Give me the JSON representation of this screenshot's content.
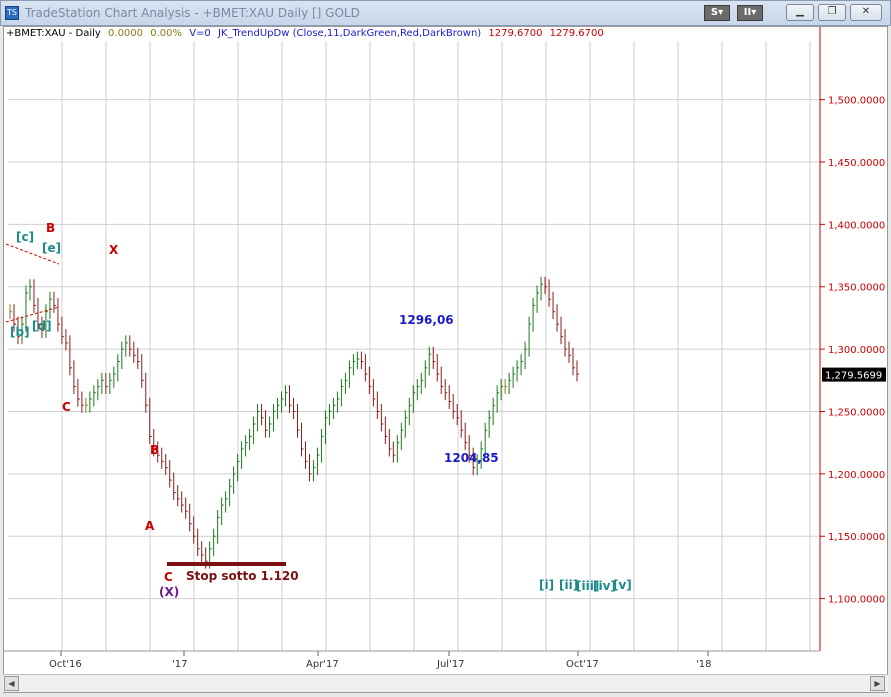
{
  "window": {
    "title": "TradeStation Chart Analysis - +BMET:XAU Daily [] GOLD",
    "buttons": {
      "s_label": "S",
      "chart_label": "II"
    }
  },
  "chart_header": {
    "symbol": "+BMET:XAU - Daily",
    "change": "0.0000",
    "change_pct": "0.00%",
    "volume": "V=0",
    "indicator": "JK_TrendUpDw (Close,11,DarkGreen,Red,DarkBrown)",
    "value1": "1279.6700",
    "value2": "1279.6700"
  },
  "colors": {
    "up": "#1a7a1a",
    "down": "#8b1a1a",
    "neutral": "#8a7a1a",
    "axis": "#cc0000",
    "grid": "#cfcfcf",
    "blue_label": "#1a1acc",
    "teal_label": "#1a8a8a",
    "purple_label": "#6a1a8a",
    "red_label": "#cc0000"
  },
  "chart_data": {
    "type": "bar",
    "y_ticks": [
      "1,500.0000",
      "1,450.0000",
      "1,400.0000",
      "1,350.0000",
      "1,300.0000",
      "1,250.0000",
      "1,200.0000",
      "1,150.0000",
      "1,100.0000"
    ],
    "y_tick_values": [
      1500,
      1450,
      1400,
      1350,
      1300,
      1250,
      1200,
      1150,
      1100
    ],
    "ylim": [
      1058,
      1547
    ],
    "x_ticks": [
      "Oct'16",
      "'17",
      "Apr'17",
      "Jul'17",
      "Oct'17",
      "'18"
    ],
    "last_price": "1,279.5699",
    "last_price_value": 1279.5699,
    "series": [
      {
        "values": [
          1330,
          1320,
          1310,
          1320,
          1345,
          1350,
          1335,
          1320,
          1315,
          1330,
          1340,
          1335,
          1320,
          1310,
          1305,
          1285,
          1270,
          1260,
          1255,
          1255,
          1260,
          1265,
          1270,
          1275,
          1270,
          1275,
          1280,
          1290,
          1300,
          1305,
          1300,
          1295,
          1290,
          1275,
          1255,
          1230,
          1220,
          1215,
          1210,
          1205,
          1195,
          1185,
          1180,
          1175,
          1170,
          1160,
          1150,
          1140,
          1135,
          1130,
          1140,
          1150,
          1165,
          1175,
          1180,
          1190,
          1200,
          1210,
          1220,
          1225,
          1230,
          1240,
          1250,
          1245,
          1235,
          1240,
          1250,
          1255,
          1260,
          1265,
          1255,
          1250,
          1235,
          1220,
          1210,
          1200,
          1205,
          1215,
          1230,
          1245,
          1250,
          1255,
          1260,
          1270,
          1275,
          1285,
          1290,
          1292,
          1290,
          1280,
          1270,
          1260,
          1250,
          1240,
          1230,
          1220,
          1215,
          1225,
          1235,
          1245,
          1255,
          1265,
          1270,
          1275,
          1285,
          1296,
          1290,
          1280,
          1270,
          1265,
          1258,
          1250,
          1245,
          1235,
          1225,
          1215,
          1205,
          1210,
          1220,
          1235,
          1245,
          1255,
          1265,
          1270,
          1270,
          1275,
          1280,
          1285,
          1290,
          1300,
          1320,
          1335,
          1345,
          1352,
          1350,
          1340,
          1330,
          1320,
          1310,
          1300,
          1295,
          1285,
          1280
        ]
      }
    ],
    "annotations": {
      "b_top": "B",
      "c_bracket": "[c]",
      "e_bracket": "[e]",
      "b_bracket": "[b]",
      "d_bracket": "[d]",
      "x_label": "X",
      "c1": "C",
      "b2": "B",
      "a1": "A",
      "c2": "C",
      "x_paren": "(X)",
      "stop": "Stop sotto 1.120",
      "high_label": "1296,06",
      "low_label": "1204,85",
      "wave_i": "[i]",
      "wave_ii": "[ii]",
      "wave_iii": "[iii]",
      "wave_iv": "[iv]",
      "wave_v": "[v]"
    }
  }
}
